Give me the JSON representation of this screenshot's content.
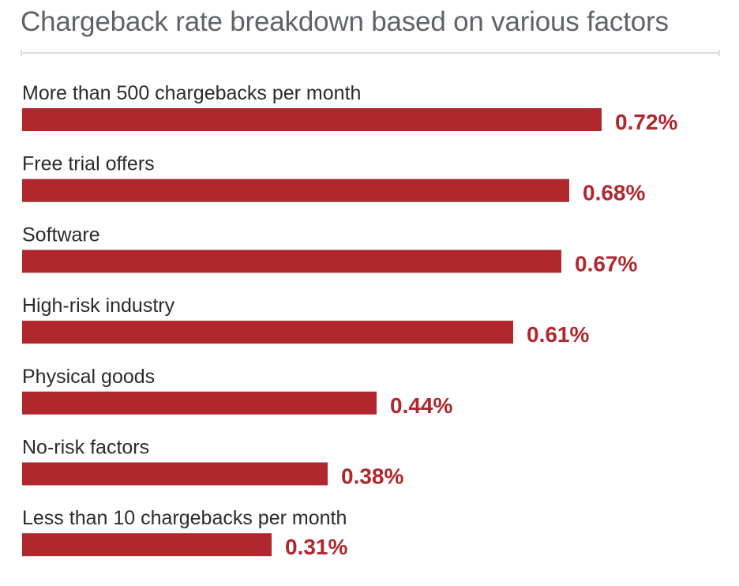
{
  "chart_data": {
    "type": "bar",
    "orientation": "horizontal",
    "title": "Chargeback rate breakdown based on various factors",
    "categories": [
      "More than 500 chargebacks per month",
      "Free trial offers",
      "Software",
      "High-risk industry",
      "Physical goods",
      "No-risk factors",
      "Less than 10 chargebacks per month"
    ],
    "values": [
      0.72,
      0.68,
      0.67,
      0.61,
      0.44,
      0.38,
      0.31
    ],
    "value_labels": [
      "0.72%",
      "0.68%",
      "0.67%",
      "0.61%",
      "0.44%",
      "0.38%",
      "0.31%"
    ],
    "unit": "%",
    "xlim": [
      0,
      0.82
    ],
    "bar_color": "#b0272e",
    "label_color": "#b0272e",
    "grid": false,
    "legend": "none"
  }
}
